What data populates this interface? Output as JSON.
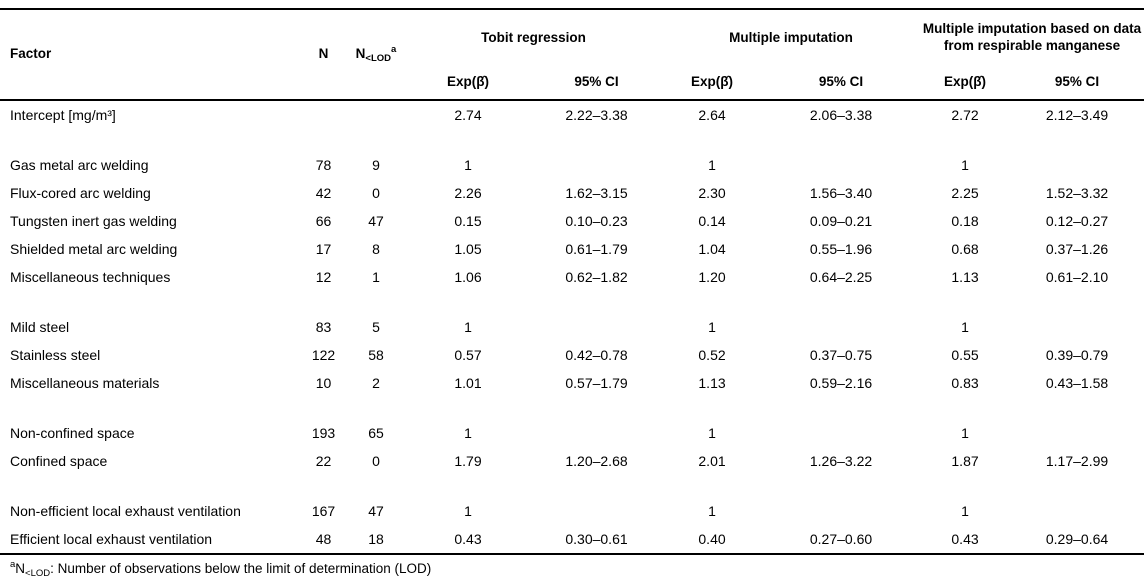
{
  "table": {
    "header": {
      "factor": "Factor",
      "n": "N",
      "nlod_base": "N",
      "nlod_sub": "<LOD",
      "nlod_sup": "a",
      "groups": [
        "Tobit regression",
        "Multiple imputation",
        "Multiple imputation based on data from respirable manganese"
      ],
      "sub_exp": "Exp(β̂)",
      "sub_ci": "95% CI"
    },
    "rows": [
      [
        "Intercept [mg/m³]",
        "",
        "",
        "2.74",
        "2.22–3.38",
        "2.64",
        "2.06–3.38",
        "2.72",
        "2.12–3.49"
      ],
      null,
      [
        "Gas metal arc welding",
        "78",
        "9",
        "1",
        "",
        "1",
        "",
        "1",
        ""
      ],
      [
        "Flux-cored arc welding",
        "42",
        "0",
        "2.26",
        "1.62–3.15",
        "2.30",
        "1.56–3.40",
        "2.25",
        "1.52–3.32"
      ],
      [
        "Tungsten inert gas welding",
        "66",
        "47",
        "0.15",
        "0.10–0.23",
        "0.14",
        "0.09–0.21",
        "0.18",
        "0.12–0.27"
      ],
      [
        "Shielded metal arc welding",
        "17",
        "8",
        "1.05",
        "0.61–1.79",
        "1.04",
        "0.55–1.96",
        "0.68",
        "0.37–1.26"
      ],
      [
        "Miscellaneous techniques",
        "12",
        "1",
        "1.06",
        "0.62–1.82",
        "1.20",
        "0.64–2.25",
        "1.13",
        "0.61–2.10"
      ],
      null,
      [
        "Mild steel",
        "83",
        "5",
        "1",
        "",
        "1",
        "",
        "1",
        ""
      ],
      [
        "Stainless steel",
        "122",
        "58",
        "0.57",
        "0.42–0.78",
        "0.52",
        "0.37–0.75",
        "0.55",
        "0.39–0.79"
      ],
      [
        "Miscellaneous materials",
        "10",
        "2",
        "1.01",
        "0.57–1.79",
        "1.13",
        "0.59–2.16",
        "0.83",
        "0.43–1.58"
      ],
      null,
      [
        "Non-confined space",
        "193",
        "65",
        "1",
        "",
        "1",
        "",
        "1",
        ""
      ],
      [
        "Confined space",
        "22",
        "0",
        "1.79",
        "1.20–2.68",
        "2.01",
        "1.26–3.22",
        "1.87",
        "1.17–2.99"
      ],
      null,
      [
        "Non-efficient local exhaust ventilation",
        "167",
        "47",
        "1",
        "",
        "1",
        "",
        "1",
        ""
      ],
      [
        "Efficient local exhaust ventilation",
        "48",
        "18",
        "0.43",
        "0.30–0.61",
        "0.40",
        "0.27–0.60",
        "0.43",
        "0.29–0.64"
      ]
    ],
    "footnote": {
      "sup": "a",
      "base": "N",
      "sub": "<LOD",
      "rest": ": Number of observations below the limit of determination (LOD)"
    }
  }
}
